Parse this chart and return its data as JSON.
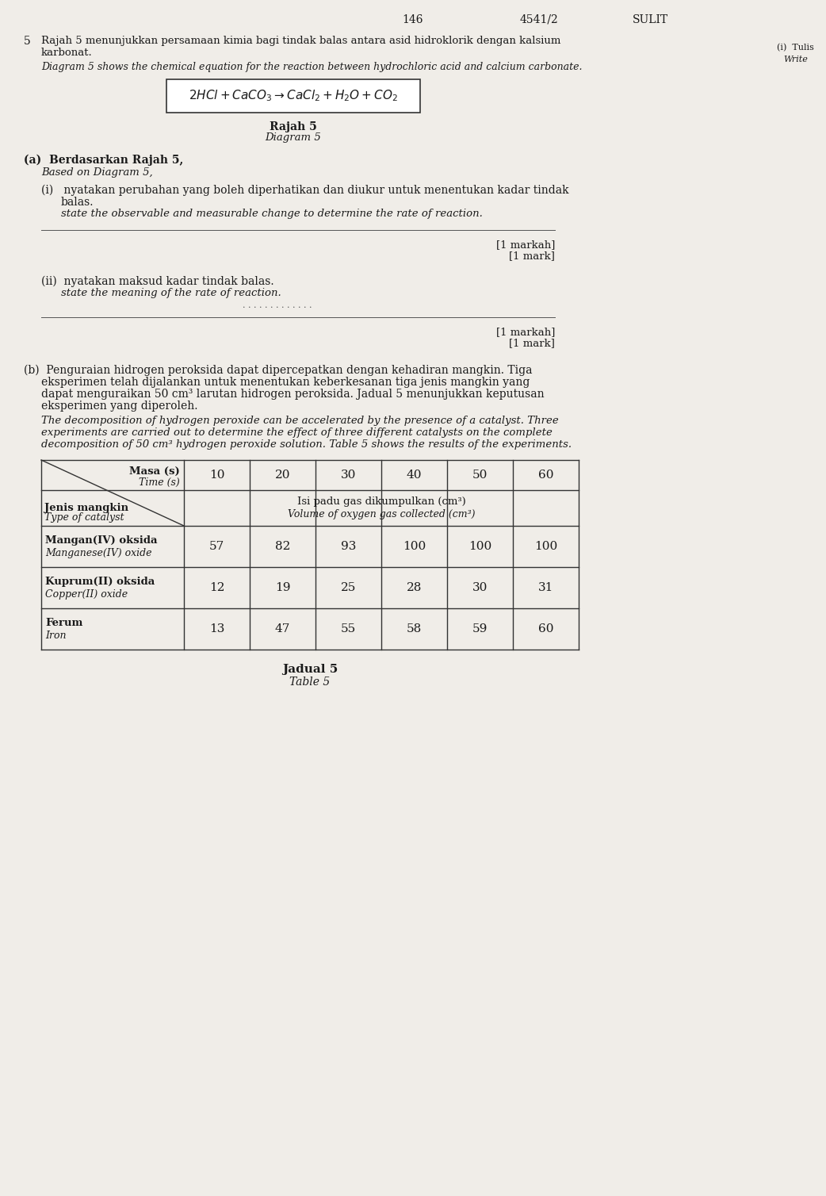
{
  "page_number_left": "146",
  "page_number_center": "4541/2",
  "page_number_right": "SULIT",
  "question_number": "5",
  "malay_intro": "Rajah 5 menunjukkan persamaan kimia bagi tindak balas antara asid hidroklorik dengan kalsium karbonat.",
  "english_intro": "Diagram 5 shows the chemical equation for the reaction between hydrochloric acid and calcium carbonate.",
  "equation": "2HCl + CaCO₃ → CaCl₂ + H₂O + CO₂",
  "rajah_label": "Rajah 5",
  "diagram_label": "Diagram 5",
  "part_a_header_malay": "(a)  Berdasarkan Rajah 5,",
  "part_a_header_english": "Based on Diagram 5,",
  "part_a_i_malay": "(i)  nyatakan perubahan yang boleh diperhatikan dan diukur untuk menentukan kadar tindak balas.",
  "part_a_i_english": "state the observable and measurable change to determine the rate of reaction.",
  "mark_malay_1": "[1 markah]",
  "mark_english_1": "[1 mark]",
  "part_a_ii_malay": "(ii)  nyatakan maksud kadar tindak balas.",
  "part_a_ii_english": "state the meaning of the rate of reaction.",
  "mark_malay_2": "[1 markah]",
  "mark_english_2": "[1 mark]",
  "part_b_malay": "(b)  Penguraian hidrogen peroksida dapat dipercepatkan dengan kehadiran mangkin. Tiga eksperimen telah dijalankan untuk menentukan keberkesanan tiga jenis mangkin yang dapat menguraikan 50 cm³ larutan hidrogen peroksida. Jadual 5 menunjukkan keputusan eksperimen yang diperoleh.",
  "part_b_english": "The decomposition of hydrogen peroxide can be accelerated by the presence of a catalyst. Three experiments are carried out to determine the effect of three different catalysts on the complete decomposition of 50 cm³ hydrogen peroxide solution. Table 5 shows the results of the experiments.",
  "table_header_time_malay": "Masa (s)",
  "table_header_time_english": "Time (s)",
  "table_header_catalyst_malay": "Jenis mangkin",
  "table_header_catalyst_english": "Type of catalyst",
  "table_header_volume_malay": "Isi padu gas dikumpulkan (cm³)",
  "table_header_volume_english": "Volume of oxygen gas collected (cm³)",
  "time_values": [
    10,
    20,
    30,
    40,
    50,
    60
  ],
  "catalyst_1_malay": "Mangan(IV) oksida",
  "catalyst_1_english": "Manganese(IV) oxide",
  "catalyst_1_values": [
    57,
    82,
    93,
    100,
    100,
    100
  ],
  "catalyst_2_malay": "Kuprum(II) oksida",
  "catalyst_2_english": "Copper(II) oxide",
  "catalyst_2_values": [
    12,
    19,
    25,
    28,
    30,
    31
  ],
  "catalyst_3_malay": "Ferum",
  "catalyst_3_english": "Iron",
  "catalyst_3_values": [
    13,
    47,
    55,
    58,
    59,
    60
  ],
  "table_caption_malay": "Jadual 5",
  "table_caption_english": "Table 5",
  "bg_color": "#f0ede8",
  "text_color": "#1a1a1a",
  "line_color": "#333333",
  "right_panel_note": "(i)  Tulis\nWrite"
}
